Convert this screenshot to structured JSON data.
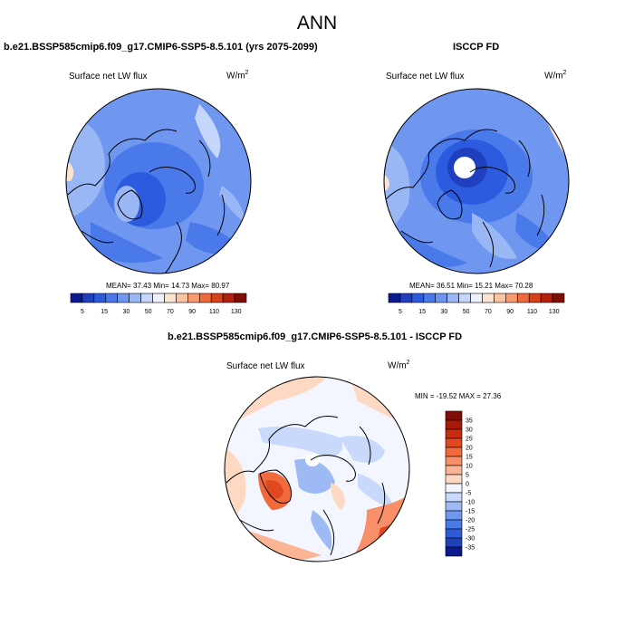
{
  "page": {
    "title": "ANN"
  },
  "panel1": {
    "case_title": "b.e21.BSSP585cmip6.f09_g17.CMIP6-SSP5-8.5.101 (yrs 2075-2099)",
    "variable": "Surface net LW flux",
    "units_base": "W/m",
    "units_exp": "2",
    "stats": "MEAN= 37.43  Min= 14.73  Max= 80.97"
  },
  "panel2": {
    "case_title": "ISCCP FD",
    "variable": "Surface net LW flux",
    "units_base": "W/m",
    "units_exp": "2",
    "stats": "MEAN= 36.51  Min= 15.21  Max= 70.28"
  },
  "panel3": {
    "case_title": "b.e21.BSSP585cmip6.f09_g17.CMIP6-SSP5-8.5.101 - ISCCP FD",
    "variable": "Surface net LW flux",
    "units_base": "W/m",
    "units_exp": "2",
    "stats": "MIN = -19.52 MAX = 27.36"
  },
  "colorbar_abs": {
    "tick_labels": [
      "5",
      "15",
      "30",
      "50",
      "70",
      "90",
      "110",
      "130"
    ],
    "colors": [
      "#0a1a8c",
      "#1f3fbf",
      "#2d5be0",
      "#4a79ea",
      "#6f97f0",
      "#9ab7f5",
      "#c4d6fa",
      "#eef2ff",
      "#fde3d2",
      "#fcc3a3",
      "#f89a6e",
      "#f06a3c",
      "#d9401a",
      "#b3200c",
      "#7e0d04"
    ]
  },
  "colorbar_diff": {
    "tick_labels": [
      "35",
      "30",
      "25",
      "20",
      "15",
      "10",
      "5",
      "0",
      "-5",
      "-10",
      "-15",
      "-20",
      "-25",
      "-30",
      "-35"
    ],
    "colors": [
      "#7e0d04",
      "#a51a08",
      "#c62d10",
      "#e0481f",
      "#f16a3e",
      "#f88f68",
      "#fbb595",
      "#fdd8c3",
      "#f3f6ff",
      "#c8d9fb",
      "#9dbaf5",
      "#6f97ef",
      "#4a79e8",
      "#2e5cd8",
      "#1f42b8",
      "#0a1a8c"
    ]
  }
}
